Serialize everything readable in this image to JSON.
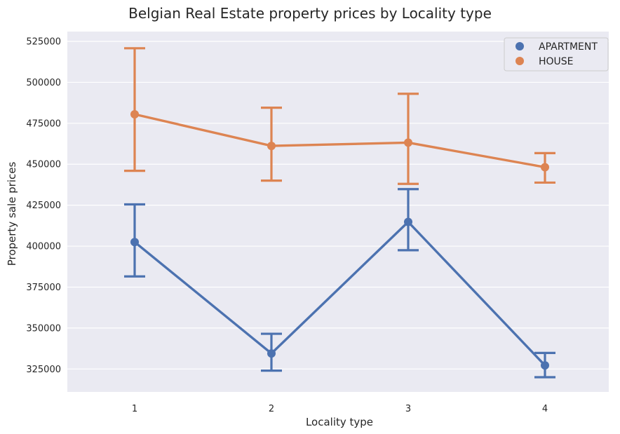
{
  "chart_data": {
    "type": "line",
    "title": "Belgian Real Estate property prices by Locality type",
    "xlabel": "Locality type",
    "ylabel": "Property sale prices",
    "categories": [
      "1",
      "2",
      "3",
      "4"
    ],
    "yticks": [
      325000,
      350000,
      375000,
      400000,
      425000,
      450000,
      475000,
      500000,
      525000
    ],
    "ylim": [
      311000,
      531000
    ],
    "grid": true,
    "legend_position": "top-right",
    "series": [
      {
        "name": "APARTMENT",
        "color": "#4c72b0",
        "values": [
          402500,
          334500,
          414800,
          327200
        ],
        "ci_low": [
          381500,
          324000,
          397500,
          320000
        ],
        "ci_high": [
          425500,
          346500,
          434800,
          334800
        ]
      },
      {
        "name": "HOUSE",
        "color": "#dd8452",
        "values": [
          480500,
          461200,
          463200,
          448200
        ],
        "ci_low": [
          446000,
          440000,
          438000,
          438800
        ],
        "ci_high": [
          520800,
          484500,
          493000,
          456800
        ]
      }
    ]
  }
}
